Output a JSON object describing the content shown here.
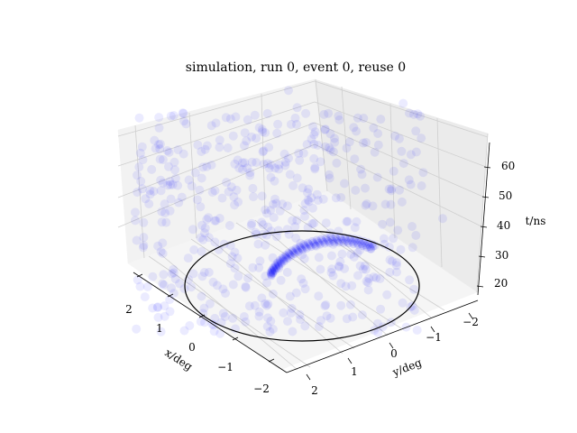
{
  "chart_data": {
    "type": "scatter",
    "title": "simulation, run 0, event 0, reuse 0",
    "xlabel": "x/deg",
    "ylabel": "y/deg",
    "zlabel": "t/ns",
    "xlim": [
      -2.5,
      2.5
    ],
    "ylim": [
      -2.5,
      2.5
    ],
    "zlim": [
      17,
      66
    ],
    "xticks": [
      "2",
      "1",
      "0",
      "−1",
      "−2"
    ],
    "yticks": [
      "2",
      "1",
      "0",
      "−1",
      "−2"
    ],
    "zticks": [
      "20",
      "30",
      "40",
      "50",
      "60"
    ],
    "projection": "3d",
    "marker_color": "#0000ff",
    "marker_alpha": 0.08,
    "circle_radius_deg": 2.0,
    "point_cloud_note": "diffuse background hits; dense arc near the circle",
    "series": [
      {
        "points_xyt": [
          [
            1.2,
            0.4,
            25
          ],
          [
            1.5,
            0.8,
            22
          ],
          [
            0.8,
            1.2,
            24
          ],
          [
            -0.5,
            1.4,
            21
          ],
          [
            1.8,
            -0.3,
            23
          ],
          [
            0.3,
            0.9,
            28
          ],
          [
            -1.0,
            0.7,
            26
          ],
          [
            0.6,
            -0.6,
            22
          ],
          [
            -1.4,
            -0.2,
            27
          ],
          [
            1.0,
            1.6,
            21
          ],
          [
            0.1,
            1.8,
            23
          ],
          [
            -1.6,
            1.1,
            22
          ],
          [
            1.6,
            -1.1,
            24
          ],
          [
            -0.8,
            -1.0,
            21
          ],
          [
            0.4,
            -1.5,
            25
          ],
          [
            2.0,
            0.1,
            29
          ],
          [
            1.3,
            1.5,
            33
          ],
          [
            0.2,
            2.0,
            31
          ],
          [
            -0.7,
            1.9,
            35
          ],
          [
            -1.9,
            0.6,
            30
          ],
          [
            1.9,
            -0.7,
            32
          ],
          [
            -1.2,
            -1.3,
            34
          ],
          [
            0.9,
            -1.8,
            30
          ],
          [
            -0.2,
            -2.0,
            36
          ],
          [
            1.7,
            1.0,
            38
          ],
          [
            0.5,
            0.5,
            40
          ],
          [
            -0.4,
            0.2,
            42
          ],
          [
            1.1,
            -0.2,
            45
          ],
          [
            -1.1,
            1.3,
            44
          ],
          [
            0.0,
            -0.9,
            47
          ],
          [
            1.4,
            0.6,
            50
          ],
          [
            -0.6,
            -0.4,
            52
          ],
          [
            0.7,
            1.1,
            55
          ],
          [
            -1.5,
            0.3,
            57
          ],
          [
            1.2,
            -1.2,
            58
          ],
          [
            0.3,
            -0.3,
            60
          ],
          [
            -0.9,
            0.9,
            62
          ],
          [
            1.6,
            0.2,
            63
          ],
          [
            -0.3,
            1.5,
            61
          ],
          [
            0.8,
            -1.0,
            64
          ],
          [
            2.2,
            -1.5,
            40
          ],
          [
            1.9,
            -2.0,
            48
          ],
          [
            0.0,
            -2.3,
            55
          ],
          [
            -2.1,
            -1.4,
            44
          ],
          [
            -2.3,
            0.5,
            52
          ],
          [
            -1.8,
            1.9,
            58
          ],
          [
            0.6,
            2.3,
            46
          ],
          [
            1.7,
            2.1,
            60
          ],
          [
            2.3,
            1.2,
            53
          ],
          [
            2.1,
            -0.5,
            37
          ],
          [
            -2.0,
            -2.0,
            33
          ],
          [
            -0.5,
            -2.2,
            63
          ],
          [
            2.4,
            2.3,
            56
          ],
          [
            -2.4,
            2.2,
            43
          ],
          [
            1.0,
            2.4,
            39
          ],
          [
            -1.3,
            2.4,
            27
          ],
          [
            2.4,
            0.0,
            44
          ],
          [
            -2.3,
            -0.7,
            61
          ],
          [
            0.4,
            0.0,
            35
          ],
          [
            -0.1,
            0.7,
            49
          ],
          [
            1.1,
            0.9,
            29
          ],
          [
            -1.7,
            -0.9,
            39
          ],
          [
            0.2,
            1.3,
            57
          ],
          [
            1.5,
            -1.6,
            51
          ],
          [
            -0.8,
            2.2,
            41
          ],
          [
            2.2,
            1.8,
            24
          ],
          [
            -2.2,
            1.4,
            36
          ],
          [
            0.9,
            -2.3,
            42
          ],
          [
            -1.0,
            -2.3,
            50
          ],
          [
            2.0,
            -1.0,
            59
          ]
        ]
      }
    ]
  }
}
